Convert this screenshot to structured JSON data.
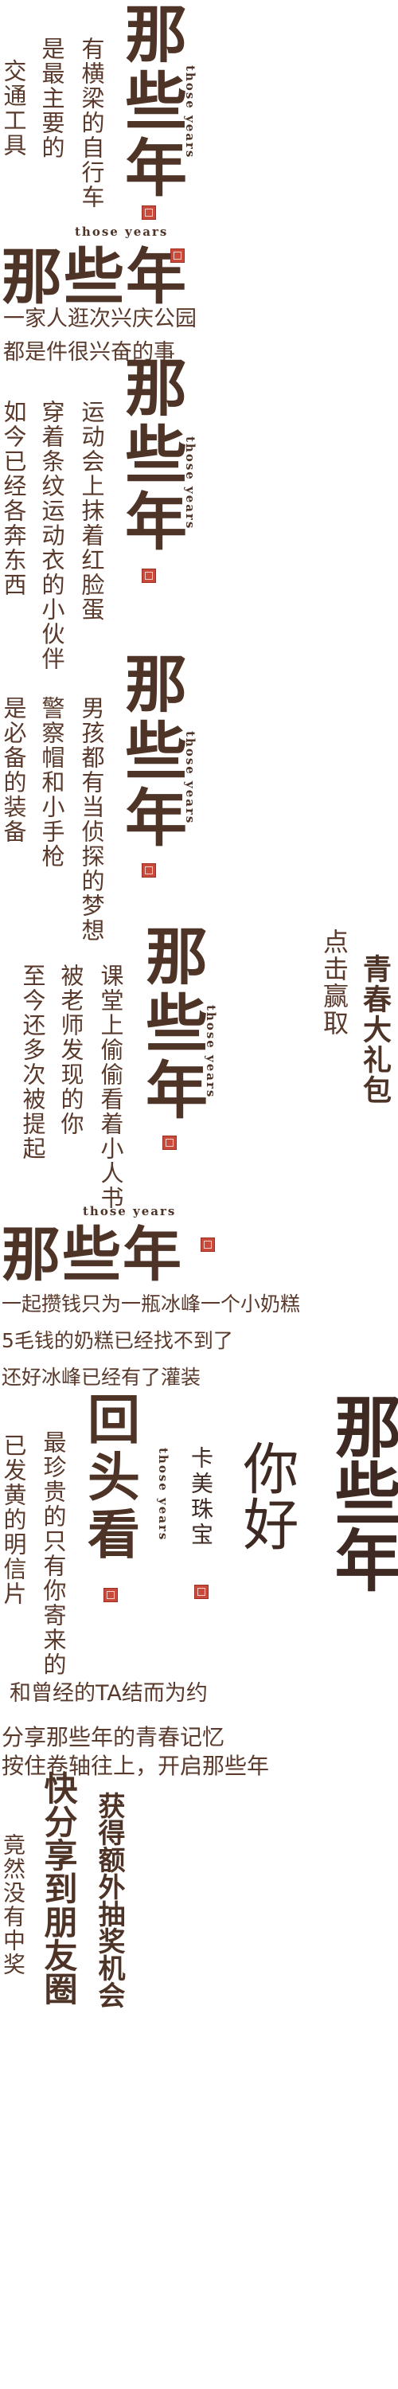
{
  "section1": {
    "title": "那些年",
    "subtitle": "those years",
    "line_right": "有横梁的自行车",
    "line_mid": "是最主要的",
    "line_left": "交通工具"
  },
  "section2": {
    "title": "那些年",
    "subtitle": "those years",
    "line1": "一家人逛次兴庆公园",
    "line2": "都是件很兴奋的事"
  },
  "section3": {
    "title": "那些年",
    "subtitle": "those years",
    "line_right": "运动会上抹着红脸蛋",
    "line_mid": "穿着条纹运动衣的小伙伴",
    "line_left": "如今已经各奔东西"
  },
  "section4": {
    "title": "那些年",
    "subtitle": "those years",
    "line_right": "男孩都有当侦探的梦想",
    "line_mid": "警察帽和小手枪",
    "line_left": "是必备的装备"
  },
  "section5": {
    "title": "那些年",
    "subtitle": "those years",
    "line_right": "课堂上偷偷看着小人书",
    "line_mid": "被老师发现的你",
    "line_left": "至今还多次被提起"
  },
  "prize": {
    "line_right": "青春大礼包",
    "line_left": "点击赢取"
  },
  "section6": {
    "title": "那些年",
    "subtitle": "those years",
    "line1": "一起攒钱只为一瓶冰峰一个小奶糕",
    "line2": "5毛钱的奶糕已经找不到了",
    "line3": "还好冰峰已经有了灌装"
  },
  "section7": {
    "title": "回头看",
    "subtitle": "those years",
    "line_right": "最珍贵的只有你寄来的",
    "line_left": "已发黄的明信片",
    "line_bottom": "和曾经的TA结而为约"
  },
  "brand": {
    "name": "卡美珠宝",
    "subtitle": "those years",
    "hello": "你好",
    "calligraphy": "那些年"
  },
  "footer": {
    "line1": "分享那些年的青春记忆",
    "line2": "按住卷轴往上，开启那些年",
    "share": "快分享到朋友圈",
    "extra": "获得额外抽奖机会",
    "no_prize": "竟然没有中奖"
  }
}
